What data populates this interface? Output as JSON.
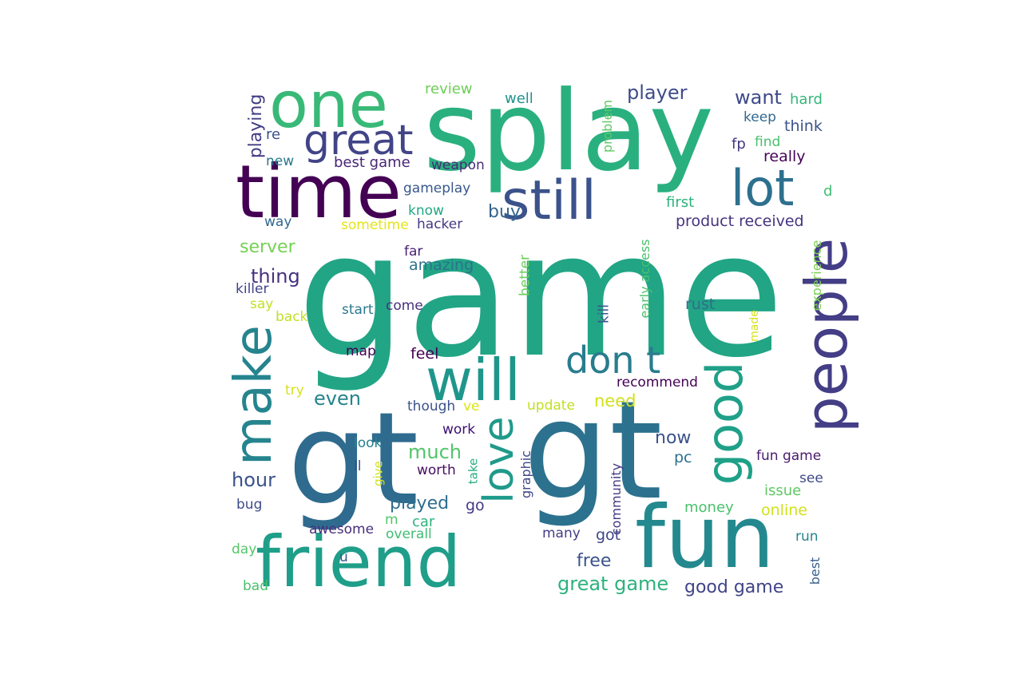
{
  "words": [
    {
      "text": "game",
      "color": "#21a585"
    },
    {
      "text": "splay",
      "color": "#2ab07f"
    },
    {
      "text": "gt",
      "color": "#2f6b8e"
    },
    {
      "text": "gt",
      "color": "#2c728e"
    },
    {
      "text": "time",
      "color": "#440154"
    },
    {
      "text": "one",
      "color": "#38b977"
    },
    {
      "text": "still",
      "color": "#3b528b"
    },
    {
      "text": "great",
      "color": "#414487"
    },
    {
      "text": "lot",
      "color": "#2d708e"
    },
    {
      "text": "fun",
      "color": "#23898e"
    },
    {
      "text": "friend",
      "color": "#1f9e89"
    },
    {
      "text": "people",
      "color": "#433e85"
    },
    {
      "text": "will",
      "color": "#1f968b"
    },
    {
      "text": "make",
      "color": "#25848e"
    },
    {
      "text": "good",
      "color": "#1fa088"
    },
    {
      "text": "don t",
      "color": "#287c8e"
    },
    {
      "text": "love",
      "color": "#1f9a8a"
    },
    {
      "text": "player",
      "color": "#3e4c8a"
    },
    {
      "text": "want",
      "color": "#3e4a89"
    },
    {
      "text": "review",
      "color": "#6ece58"
    },
    {
      "text": "well",
      "color": "#21918c"
    },
    {
      "text": "hard",
      "color": "#35b779"
    },
    {
      "text": "keep",
      "color": "#31688e"
    },
    {
      "text": "think",
      "color": "#3b528b"
    },
    {
      "text": "playing",
      "color": "#433d84"
    },
    {
      "text": "re",
      "color": "#3b528b"
    },
    {
      "text": "new",
      "color": "#2a788e"
    },
    {
      "text": "best game",
      "color": "#482576"
    },
    {
      "text": "weapon",
      "color": "#472c7a"
    },
    {
      "text": "problem",
      "color": "#5ec962"
    },
    {
      "text": "fp",
      "color": "#453882"
    },
    {
      "text": "find",
      "color": "#4ac16d"
    },
    {
      "text": "really",
      "color": "#450457"
    },
    {
      "text": "gameplay",
      "color": "#38588c"
    },
    {
      "text": "first",
      "color": "#2db27d"
    },
    {
      "text": "d",
      "color": "#3fbc73"
    },
    {
      "text": "way",
      "color": "#31688e"
    },
    {
      "text": "know",
      "color": "#22a884"
    },
    {
      "text": "buy",
      "color": "#33638d"
    },
    {
      "text": "product received",
      "color": "#46337f"
    },
    {
      "text": "sometime",
      "color": "#e5e419"
    },
    {
      "text": "hacker",
      "color": "#443983"
    },
    {
      "text": "server",
      "color": "#75d054"
    },
    {
      "text": "far",
      "color": "#481f70"
    },
    {
      "text": "amazing",
      "color": "#2c728e"
    },
    {
      "text": "early access",
      "color": "#4ac16d"
    },
    {
      "text": "experience",
      "color": "#7ad151"
    },
    {
      "text": "thing",
      "color": "#46327e"
    },
    {
      "text": "killer",
      "color": "#414487"
    },
    {
      "text": "better",
      "color": "#6ccd5a"
    },
    {
      "text": "say",
      "color": "#c2df23"
    },
    {
      "text": "back",
      "color": "#c2df23"
    },
    {
      "text": "start",
      "color": "#2a788e"
    },
    {
      "text": "come",
      "color": "#46307e"
    },
    {
      "text": "kill",
      "color": "#3a548c"
    },
    {
      "text": "rust",
      "color": "#2e6e8e"
    },
    {
      "text": "made",
      "color": "#d8e219"
    },
    {
      "text": "map",
      "color": "#440154"
    },
    {
      "text": "feel",
      "color": "#440154"
    },
    {
      "text": "recommend",
      "color": "#440154"
    },
    {
      "text": "try",
      "color": "#d8e219"
    },
    {
      "text": "even",
      "color": "#25848e"
    },
    {
      "text": "need",
      "color": "#d0e11c"
    },
    {
      "text": "though",
      "color": "#3b528b"
    },
    {
      "text": "ve",
      "color": "#dde318"
    },
    {
      "text": "update",
      "color": "#c2df23"
    },
    {
      "text": "work",
      "color": "#3b0f70"
    },
    {
      "text": "graphic",
      "color": "#404688"
    },
    {
      "text": "now",
      "color": "#3b528b"
    },
    {
      "text": "look",
      "color": "#26828e"
    },
    {
      "text": "much",
      "color": "#52c569"
    },
    {
      "text": "pc",
      "color": "#2c728e"
    },
    {
      "text": "fun game",
      "color": "#481b6d"
    },
    {
      "text": "ll",
      "color": "#3e4c8a"
    },
    {
      "text": "give",
      "color": "#d2e21b"
    },
    {
      "text": "take",
      "color": "#29af7f"
    },
    {
      "text": "worth",
      "color": "#470d60"
    },
    {
      "text": "community",
      "color": "#443983"
    },
    {
      "text": "hour",
      "color": "#3b528b"
    },
    {
      "text": "see",
      "color": "#3e4989"
    },
    {
      "text": "issue",
      "color": "#5ec962"
    },
    {
      "text": "bug",
      "color": "#3e4c8a"
    },
    {
      "text": "played",
      "color": "#2e6e8e"
    },
    {
      "text": "go",
      "color": "#443983"
    },
    {
      "text": "money",
      "color": "#4ac16d"
    },
    {
      "text": "online",
      "color": "#d0e11c"
    },
    {
      "text": "awesome",
      "color": "#472d7b"
    },
    {
      "text": "m",
      "color": "#52c569"
    },
    {
      "text": "car",
      "color": "#2db27d"
    },
    {
      "text": "overall",
      "color": "#3fbc73"
    },
    {
      "text": "many",
      "color": "#433e85"
    },
    {
      "text": "got",
      "color": "#404688"
    },
    {
      "text": "run",
      "color": "#25848e"
    },
    {
      "text": "day",
      "color": "#54c568"
    },
    {
      "text": "u",
      "color": "#3b528b"
    },
    {
      "text": "free",
      "color": "#3b528b"
    },
    {
      "text": "best",
      "color": "#355f8d"
    },
    {
      "text": "great game",
      "color": "#2db27d"
    },
    {
      "text": "good game",
      "color": "#414487"
    },
    {
      "text": "bad",
      "color": "#4ac16d"
    }
  ]
}
